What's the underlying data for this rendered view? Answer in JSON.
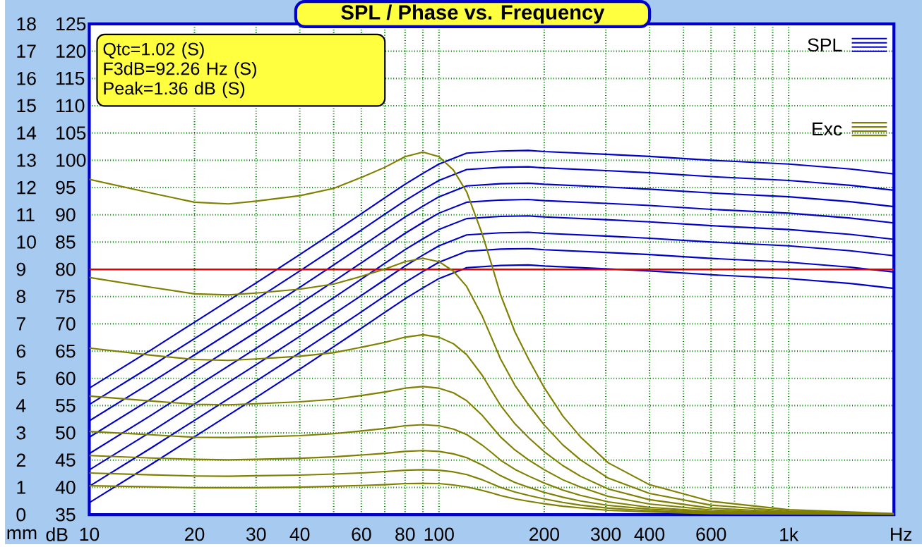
{
  "chart_data": {
    "type": "line",
    "title": "SPL / Phase vs. Frequency",
    "xlabel": "Hz",
    "ylabel": "dB",
    "y2label": "mm",
    "annotations": [
      "Qtc=1.02 (S)",
      "F3dB=92.26 Hz (S)",
      "Peak=1.36 dB (S)"
    ],
    "log": "x",
    "grid": true,
    "legend": "top right",
    "xlim": [
      10,
      2000
    ],
    "ylim": [
      35,
      125
    ],
    "y2lim": [
      0,
      18
    ],
    "xticks": [
      10,
      20,
      30,
      40,
      {
        "value": 50,
        "label": null
      },
      60,
      {
        "value": 70,
        "label": null
      },
      80,
      {
        "value": 90,
        "label": null
      },
      100,
      200,
      300,
      400,
      {
        "value": 500,
        "label": null
      },
      600,
      {
        "value": 700,
        "label": null
      },
      {
        "value": 800,
        "label": null
      },
      {
        "value": 900,
        "label": null
      },
      {
        "value": 1000,
        "label": "1k"
      }
    ],
    "yticks": [
      35,
      40,
      45,
      50,
      55,
      60,
      65,
      70,
      75,
      80,
      85,
      90,
      95,
      100,
      105,
      110,
      115,
      120,
      125
    ],
    "y2ticks": [
      0,
      1,
      2,
      3,
      4,
      5,
      6,
      7,
      8,
      9,
      10,
      11,
      12,
      13,
      14,
      15,
      16,
      17,
      18
    ],
    "ref_lines": [
      {
        "axis": "y",
        "value": 80,
        "color": "#e00000"
      }
    ],
    "series": [
      {
        "name": "SPL",
        "color": "#0000cc",
        "x": [
          10,
          15,
          20,
          30,
          40,
          50,
          60,
          70,
          80,
          90,
          100,
          120,
          150,
          180,
          200,
          300,
          400,
          600,
          1000,
          1500,
          2000
        ],
        "values": [
          58.2,
          65.2,
          70.3,
          77.5,
          82.7,
          86.8,
          90.2,
          93.1,
          95.6,
          97.6,
          99.3,
          101.3,
          101.7,
          101.8,
          101.6,
          101.1,
          100.7,
          100.0,
          99.3,
          98.4,
          97.5
        ]
      },
      {
        "color": "#0000cc",
        "x": [
          10,
          15,
          20,
          30,
          40,
          50,
          60,
          70,
          80,
          90,
          100,
          120,
          150,
          180,
          200,
          300,
          400,
          600,
          1000,
          1500,
          2000
        ],
        "values": [
          55.2,
          62.2,
          67.3,
          74.5,
          79.7,
          83.8,
          87.2,
          90.1,
          92.6,
          94.6,
          96.3,
          98.3,
          98.7,
          98.8,
          98.6,
          98.1,
          97.7,
          97.0,
          96.3,
          95.4,
          94.5
        ]
      },
      {
        "color": "#0000cc",
        "x": [
          10,
          15,
          20,
          30,
          40,
          50,
          60,
          70,
          80,
          90,
          100,
          120,
          150,
          180,
          200,
          300,
          400,
          600,
          1000,
          1500,
          2000
        ],
        "values": [
          52.2,
          59.2,
          64.3,
          71.5,
          76.7,
          80.8,
          84.2,
          87.1,
          89.6,
          91.6,
          93.3,
          95.3,
          95.7,
          95.8,
          95.6,
          95.1,
          94.7,
          94.0,
          93.3,
          92.4,
          91.5
        ]
      },
      {
        "color": "#0000cc",
        "x": [
          10,
          15,
          20,
          30,
          40,
          50,
          60,
          70,
          80,
          90,
          100,
          120,
          150,
          180,
          200,
          300,
          400,
          600,
          1000,
          1500,
          2000
        ],
        "values": [
          49.2,
          56.2,
          61.3,
          68.5,
          73.7,
          77.8,
          81.2,
          84.1,
          86.6,
          88.6,
          90.3,
          92.3,
          92.7,
          92.8,
          92.6,
          92.1,
          91.7,
          91.0,
          90.3,
          89.4,
          88.5
        ]
      },
      {
        "color": "#0000cc",
        "x": [
          10,
          15,
          20,
          30,
          40,
          50,
          60,
          70,
          80,
          90,
          100,
          120,
          150,
          180,
          200,
          300,
          400,
          600,
          1000,
          1500,
          2000
        ],
        "values": [
          46.2,
          53.2,
          58.3,
          65.5,
          70.7,
          74.8,
          78.2,
          81.1,
          83.6,
          85.6,
          87.3,
          89.3,
          89.7,
          89.8,
          89.6,
          89.1,
          88.7,
          88.0,
          87.3,
          86.4,
          85.5
        ]
      },
      {
        "color": "#0000cc",
        "x": [
          10,
          15,
          20,
          30,
          40,
          50,
          60,
          70,
          80,
          90,
          100,
          120,
          150,
          180,
          200,
          300,
          400,
          600,
          1000,
          1500,
          2000
        ],
        "values": [
          43.2,
          50.2,
          55.3,
          62.5,
          67.7,
          71.8,
          75.2,
          78.1,
          80.6,
          82.6,
          84.3,
          86.3,
          86.7,
          86.8,
          86.6,
          86.1,
          85.7,
          85.0,
          84.3,
          83.4,
          82.5
        ]
      },
      {
        "color": "#0000cc",
        "x": [
          10,
          15,
          20,
          30,
          40,
          50,
          60,
          70,
          80,
          90,
          100,
          120,
          150,
          180,
          200,
          300,
          400,
          600,
          1000,
          1500,
          2000
        ],
        "values": [
          40.2,
          47.2,
          52.3,
          59.5,
          64.7,
          68.8,
          72.2,
          75.1,
          77.6,
          79.6,
          81.3,
          83.3,
          83.7,
          83.8,
          83.6,
          83.1,
          82.7,
          82.0,
          81.3,
          80.4,
          79.5
        ]
      },
      {
        "color": "#0000cc",
        "x": [
          10,
          15,
          20,
          30,
          40,
          50,
          60,
          70,
          80,
          90,
          100,
          120,
          150,
          180,
          200,
          300,
          400,
          600,
          1000,
          1500,
          2000
        ],
        "values": [
          37.2,
          44.2,
          49.3,
          56.5,
          61.7,
          65.8,
          69.2,
          72.1,
          74.6,
          76.6,
          78.3,
          80.3,
          80.7,
          80.8,
          80.6,
          80.1,
          79.7,
          79.0,
          78.3,
          77.4,
          76.5
        ]
      },
      {
        "name": "Exc",
        "color": "#808000",
        "axis": "y2",
        "x": [
          10,
          15,
          20,
          25,
          30,
          40,
          50,
          60,
          70,
          80,
          90,
          100,
          110,
          120,
          133,
          142,
          150,
          165,
          181,
          200,
          226,
          254,
          305,
          400,
          600,
          1000,
          2000
        ],
        "values": [
          12.3,
          11.8,
          11.46,
          11.4,
          11.5,
          11.7,
          11.97,
          12.37,
          12.74,
          13.13,
          13.3,
          13.13,
          12.64,
          11.84,
          10.29,
          9.1,
          8.07,
          6.7,
          5.67,
          4.66,
          3.62,
          2.85,
          1.9,
          1.1,
          0.49,
          0.18,
          0.04
        ]
      },
      {
        "color": "#808000",
        "axis": "y2",
        "x": [
          10,
          15,
          20,
          25,
          30,
          40,
          50,
          60,
          70,
          80,
          90,
          100,
          110,
          120,
          133,
          142,
          150,
          165,
          181,
          200,
          226,
          254,
          305,
          400,
          600,
          1000,
          2000
        ],
        "values": [
          8.7,
          8.34,
          8.1,
          8.06,
          8.13,
          8.27,
          8.46,
          8.74,
          9.01,
          9.28,
          9.4,
          9.28,
          8.93,
          8.37,
          7.28,
          6.43,
          5.71,
          4.74,
          4.0,
          3.29,
          2.56,
          2.01,
          1.34,
          0.78,
          0.35,
          0.13,
          0.03
        ]
      },
      {
        "color": "#808000",
        "axis": "y2",
        "x": [
          10,
          15,
          20,
          25,
          30,
          40,
          50,
          60,
          70,
          80,
          90,
          100,
          110,
          120,
          133,
          142,
          150,
          165,
          181,
          200,
          226,
          254,
          305,
          400,
          600,
          1000,
          2000
        ],
        "values": [
          6.11,
          5.85,
          5.69,
          5.66,
          5.71,
          5.81,
          5.94,
          6.14,
          6.32,
          6.51,
          6.6,
          6.51,
          6.27,
          5.87,
          5.11,
          4.51,
          4.01,
          3.33,
          2.81,
          2.31,
          1.8,
          1.41,
          0.94,
          0.55,
          0.24,
          0.09,
          0.02
        ]
      },
      {
        "color": "#808000",
        "axis": "y2",
        "x": [
          10,
          15,
          20,
          25,
          30,
          40,
          50,
          60,
          70,
          80,
          90,
          100,
          110,
          120,
          133,
          142,
          150,
          165,
          181,
          200,
          226,
          254,
          305,
          400,
          600,
          1000,
          2000
        ],
        "values": [
          4.35,
          4.17,
          4.05,
          4.03,
          4.07,
          4.14,
          4.23,
          4.37,
          4.5,
          4.64,
          4.7,
          4.64,
          4.47,
          4.18,
          3.64,
          3.21,
          2.85,
          2.37,
          2.0,
          1.65,
          1.28,
          1.01,
          0.67,
          0.39,
          0.17,
          0.06,
          0.01
        ]
      },
      {
        "color": "#808000",
        "axis": "y2",
        "x": [
          10,
          15,
          20,
          25,
          30,
          40,
          50,
          60,
          70,
          80,
          90,
          100,
          110,
          120,
          133,
          142,
          150,
          165,
          181,
          200,
          226,
          254,
          305,
          400,
          600,
          1000,
          2000
        ],
        "values": [
          3.05,
          2.93,
          2.84,
          2.83,
          2.85,
          2.9,
          2.97,
          3.07,
          3.16,
          3.26,
          3.3,
          3.26,
          3.14,
          2.94,
          2.55,
          2.26,
          2.0,
          1.66,
          1.41,
          1.16,
          0.9,
          0.71,
          0.47,
          0.27,
          0.12,
          0.04,
          0.01
        ]
      },
      {
        "color": "#808000",
        "axis": "y2",
        "x": [
          10,
          15,
          20,
          25,
          30,
          40,
          50,
          60,
          70,
          80,
          90,
          100,
          110,
          120,
          133,
          142,
          150,
          165,
          181,
          200,
          226,
          254,
          305,
          400,
          600,
          1000,
          2000
        ],
        "values": [
          2.17,
          2.08,
          2.03,
          2.01,
          2.03,
          2.07,
          2.12,
          2.19,
          2.25,
          2.32,
          2.35,
          2.32,
          2.23,
          2.09,
          1.82,
          1.61,
          1.43,
          1.18,
          1.0,
          0.82,
          0.64,
          0.5,
          0.34,
          0.2,
          0.09,
          0.03,
          0.01
        ]
      },
      {
        "color": "#808000",
        "axis": "y2",
        "x": [
          10,
          15,
          20,
          25,
          30,
          40,
          50,
          60,
          70,
          80,
          90,
          100,
          110,
          120,
          133,
          142,
          150,
          165,
          181,
          200,
          226,
          254,
          305,
          400,
          600,
          1000,
          2000
        ],
        "values": [
          1.53,
          1.46,
          1.42,
          1.41,
          1.43,
          1.45,
          1.49,
          1.53,
          1.58,
          1.63,
          1.65,
          1.63,
          1.57,
          1.47,
          1.28,
          1.13,
          1.0,
          0.83,
          0.7,
          0.58,
          0.45,
          0.35,
          0.24,
          0.14,
          0.06,
          0.02,
          0.0
        ]
      },
      {
        "color": "#808000",
        "axis": "y2",
        "x": [
          10,
          15,
          20,
          25,
          30,
          40,
          50,
          60,
          70,
          80,
          90,
          100,
          110,
          120,
          133,
          142,
          150,
          165,
          181,
          200,
          226,
          254,
          305,
          400,
          600,
          1000,
          2000
        ],
        "values": [
          1.06,
          1.02,
          0.99,
          0.99,
          0.99,
          1.01,
          1.04,
          1.07,
          1.1,
          1.14,
          1.15,
          1.14,
          1.09,
          1.02,
          0.89,
          0.79,
          0.7,
          0.58,
          0.49,
          0.4,
          0.31,
          0.25,
          0.16,
          0.1,
          0.04,
          0.02,
          0.0
        ]
      }
    ]
  }
}
